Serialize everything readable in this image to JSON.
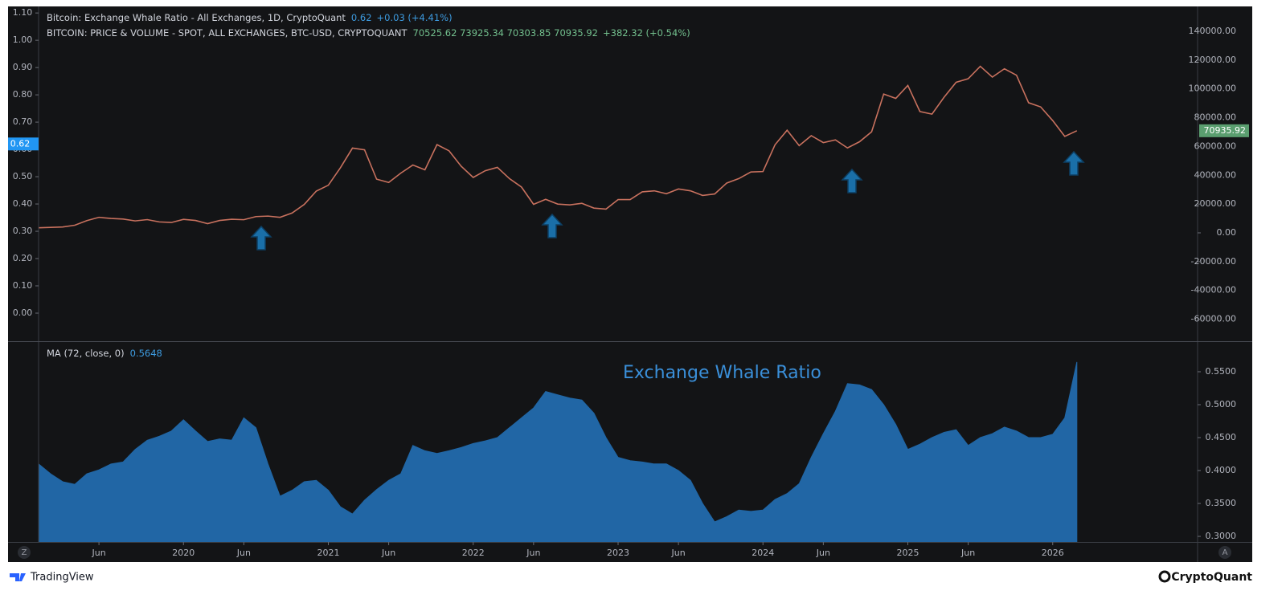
{
  "chart_data": [
    {
      "type": "line",
      "title": "Bitcoin: Exchange Whale Ratio - All Exchanges, 1D, CryptoQuant",
      "title_value": "0.62",
      "title_change": "+0.03 (+4.41%)",
      "subtitle": "BITCOIN: PRICE & VOLUME - SPOT, ALL EXCHANGES, BTC-USD, CRYPTOQUANT",
      "subtitle_values": "70525.62 73925.34 70303.85 70935.92",
      "subtitle_change": "+382.32 (+0.54%)",
      "x": [
        "2019-01",
        "2019-02",
        "2019-03",
        "2019-04",
        "2019-05",
        "2019-06",
        "2019-07",
        "2019-08",
        "2019-09",
        "2019-10",
        "2019-11",
        "2019-12",
        "2020-01",
        "2020-02",
        "2020-03",
        "2020-04",
        "2020-05",
        "2020-06",
        "2020-07",
        "2020-08",
        "2020-09",
        "2020-10",
        "2020-11",
        "2020-12",
        "2021-01",
        "2021-02",
        "2021-03",
        "2021-04",
        "2021-05",
        "2021-06",
        "2021-07",
        "2021-08",
        "2021-09",
        "2021-10",
        "2021-11",
        "2021-12",
        "2022-01",
        "2022-02",
        "2022-03",
        "2022-04",
        "2022-05",
        "2022-06",
        "2022-07",
        "2022-08",
        "2022-09",
        "2022-10",
        "2022-11",
        "2022-12",
        "2023-01",
        "2023-02",
        "2023-03",
        "2023-04",
        "2023-05",
        "2023-06",
        "2023-07",
        "2023-08",
        "2023-09",
        "2023-10",
        "2023-11",
        "2023-12",
        "2024-01",
        "2024-02",
        "2024-03",
        "2024-04",
        "2024-05",
        "2024-06",
        "2024-07",
        "2024-08",
        "2024-09",
        "2024-10",
        "2024-11",
        "2024-12",
        "2025-01",
        "2025-02",
        "2025-03",
        "2025-04",
        "2025-05",
        "2025-06",
        "2025-07",
        "2025-08",
        "2025-09",
        "2025-10",
        "2025-11",
        "2025-12",
        "2026-01",
        "2026-02",
        "2026-03"
      ],
      "xlim": [
        "2019-01",
        "2027-01"
      ],
      "ylim": [
        -0.103,
        1.124
      ],
      "yticks": [
        {
          "value": 0,
          "label": "0.00"
        },
        {
          "value": 0.1,
          "label": "0.10"
        },
        {
          "value": 0.2,
          "label": "0.20"
        },
        {
          "value": 0.3,
          "label": "0.30"
        },
        {
          "value": 0.4,
          "label": "0.40"
        },
        {
          "value": 0.5,
          "label": "0.50"
        },
        {
          "value": 0.6,
          "label": "0.60"
        },
        {
          "value": 0.7,
          "label": "0.70"
        },
        {
          "value": 0.8,
          "label": "0.80"
        },
        {
          "value": 0.9,
          "label": "0.90"
        },
        {
          "value": 1,
          "label": "1.00"
        },
        {
          "value": 1.1,
          "label": "1.10"
        }
      ],
      "y2lim": [
        -75300,
        157300
      ],
      "y2ticks": [
        {
          "value": -60000,
          "label": "-60000.00"
        },
        {
          "value": -40000,
          "label": "-40000.00"
        },
        {
          "value": -20000,
          "label": "-20000.00"
        },
        {
          "value": 0,
          "label": "0.00"
        },
        {
          "value": 20000,
          "label": "20000.00"
        },
        {
          "value": 40000,
          "label": "40000.00"
        },
        {
          "value": 60000,
          "label": "60000.00"
        },
        {
          "value": 80000,
          "label": "80000.00"
        },
        {
          "value": 100000,
          "label": "100000.00"
        },
        {
          "value": 120000,
          "label": "120000.00"
        },
        {
          "value": 140000,
          "label": "140000.00"
        }
      ],
      "last_value_y": 0.62,
      "last_value_y2": 70935.92,
      "series": [
        {
          "color": "#c8715e",
          "axis": "y2",
          "values": [
            3500,
            3800,
            4100,
            5300,
            8500,
            10800,
            10000,
            9600,
            8300,
            9200,
            7600,
            7200,
            9350,
            8600,
            6400,
            8600,
            9450,
            9140,
            11300,
            11650,
            10780,
            13800,
            19700,
            29000,
            33100,
            45200,
            58900,
            57700,
            37300,
            35000,
            41500,
            47100,
            43800,
            61300,
            57000,
            46300,
            38500,
            43200,
            45500,
            37700,
            31800,
            19800,
            23300,
            20000,
            19400,
            20500,
            17200,
            16500,
            23100,
            23100,
            28500,
            29200,
            27200,
            30500,
            29200,
            26000,
            27000,
            34600,
            37700,
            42300,
            42600,
            61200,
            71300,
            60600,
            67500,
            62700,
            64600,
            59000,
            63300,
            70200,
            96400,
            93400,
            102400,
            84300,
            82500,
            94200,
            104600,
            107100,
            115700,
            108200,
            114000,
            109500,
            90400,
            87500,
            78000,
            67000,
            70935.92
          ]
        }
      ]
    },
    {
      "type": "area",
      "title": "MA (72, close, 0)",
      "title_value": "0.5648",
      "annotation": "Exchange Whale Ratio",
      "x": [
        "2019-01",
        "2019-02",
        "2019-03",
        "2019-04",
        "2019-05",
        "2019-06",
        "2019-07",
        "2019-08",
        "2019-09",
        "2019-10",
        "2019-11",
        "2019-12",
        "2020-01",
        "2020-02",
        "2020-03",
        "2020-04",
        "2020-05",
        "2020-06",
        "2020-07",
        "2020-08",
        "2020-09",
        "2020-10",
        "2020-11",
        "2020-12",
        "2021-01",
        "2021-02",
        "2021-03",
        "2021-04",
        "2021-05",
        "2021-06",
        "2021-07",
        "2021-08",
        "2021-09",
        "2021-10",
        "2021-11",
        "2021-12",
        "2022-01",
        "2022-02",
        "2022-03",
        "2022-04",
        "2022-05",
        "2022-06",
        "2022-07",
        "2022-08",
        "2022-09",
        "2022-10",
        "2022-11",
        "2022-12",
        "2023-01",
        "2023-02",
        "2023-03",
        "2023-04",
        "2023-05",
        "2023-06",
        "2023-07",
        "2023-08",
        "2023-09",
        "2023-10",
        "2023-11",
        "2023-12",
        "2024-01",
        "2024-02",
        "2024-03",
        "2024-04",
        "2024-05",
        "2024-06",
        "2024-07",
        "2024-08",
        "2024-09",
        "2024-10",
        "2024-11",
        "2024-12",
        "2025-01",
        "2025-02",
        "2025-03",
        "2025-04",
        "2025-05",
        "2025-06",
        "2025-07",
        "2025-08",
        "2025-09",
        "2025-10",
        "2025-11",
        "2025-12",
        "2026-01",
        "2026-02",
        "2026-03"
      ],
      "xlim": [
        "2019-01",
        "2027-01"
      ],
      "xticks": [
        {
          "value": "2019-06",
          "label": "Jun"
        },
        {
          "value": "2020-01",
          "label": "2020"
        },
        {
          "value": "2020-06",
          "label": "Jun"
        },
        {
          "value": "2021-01",
          "label": "2021"
        },
        {
          "value": "2021-06",
          "label": "Jun"
        },
        {
          "value": "2022-01",
          "label": "2022"
        },
        {
          "value": "2022-06",
          "label": "Jun"
        },
        {
          "value": "2023-01",
          "label": "2023"
        },
        {
          "value": "2023-06",
          "label": "Jun"
        },
        {
          "value": "2024-01",
          "label": "2024"
        },
        {
          "value": "2024-06",
          "label": "Jun"
        },
        {
          "value": "2025-01",
          "label": "2025"
        },
        {
          "value": "2025-06",
          "label": "Jun"
        },
        {
          "value": "2026-01",
          "label": "2026"
        }
      ],
      "ylim": [
        0.2915,
        0.5963
      ],
      "yticks": [
        {
          "value": 0.3,
          "label": "0.3000"
        },
        {
          "value": 0.35,
          "label": "0.3500"
        },
        {
          "value": 0.4,
          "label": "0.4000"
        },
        {
          "value": 0.45,
          "label": "0.4500"
        },
        {
          "value": 0.5,
          "label": "0.5000"
        },
        {
          "value": 0.55,
          "label": "0.5500"
        }
      ],
      "series": [
        {
          "color": "#2166a5",
          "values": [
            0.41,
            0.395,
            0.383,
            0.379,
            0.395,
            0.401,
            0.41,
            0.413,
            0.432,
            0.446,
            0.452,
            0.46,
            0.477,
            0.46,
            0.444,
            0.448,
            0.446,
            0.48,
            0.465,
            0.41,
            0.361,
            0.37,
            0.383,
            0.385,
            0.37,
            0.345,
            0.334,
            0.355,
            0.371,
            0.385,
            0.395,
            0.438,
            0.43,
            0.426,
            0.43,
            0.435,
            0.441,
            0.445,
            0.45,
            0.465,
            0.48,
            0.495,
            0.52,
            0.515,
            0.51,
            0.507,
            0.487,
            0.45,
            0.42,
            0.415,
            0.413,
            0.41,
            0.41,
            0.4,
            0.385,
            0.35,
            0.322,
            0.33,
            0.34,
            0.338,
            0.34,
            0.356,
            0.365,
            0.38,
            0.42,
            0.456,
            0.49,
            0.532,
            0.53,
            0.523,
            0.5,
            0.47,
            0.432,
            0.44,
            0.45,
            0.458,
            0.462,
            0.438,
            0.45,
            0.456,
            0.466,
            0.46,
            0.45,
            0.45,
            0.455,
            0.48,
            0.5648
          ]
        }
      ]
    }
  ],
  "buttons": [
    "Z",
    "A"
  ],
  "footer": {
    "left": "TradingView",
    "right": "CryptoQuant"
  }
}
